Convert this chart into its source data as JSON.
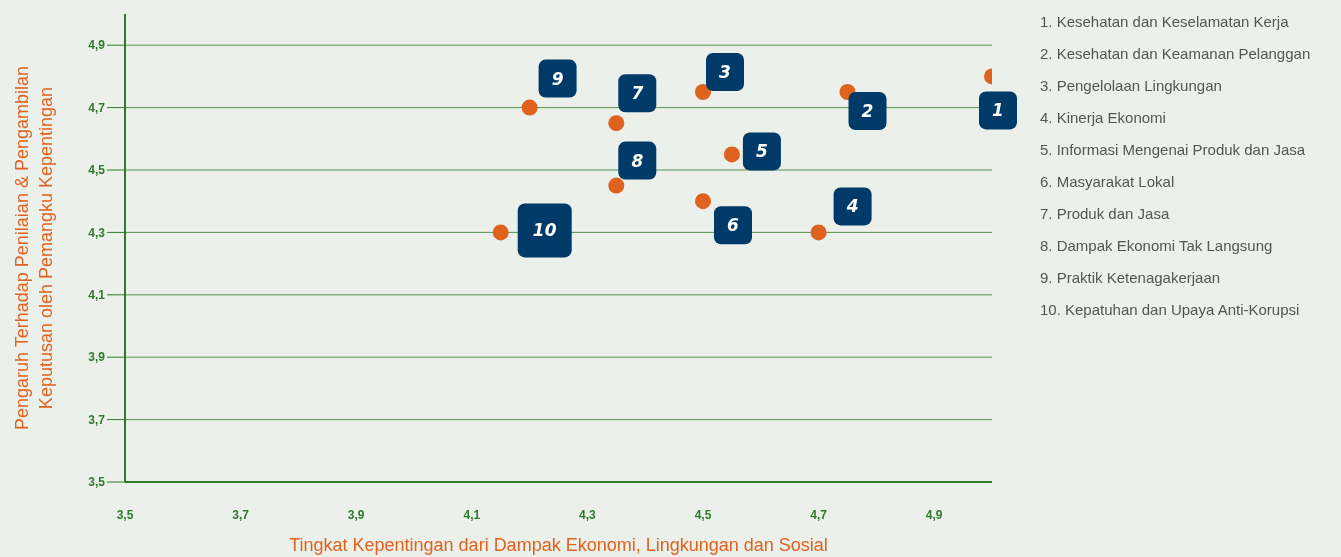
{
  "chart_data": {
    "type": "scatter",
    "xlabel": "Tingkat Kepentingan dari Dampak Ekonomi, Lingkungan dan Sosial",
    "ylabel": "Pengaruh Terhadap Penilaian & Pengambilan\nKeputusan oleh Pemangku Kepentingan",
    "x": [
      5.0,
      4.75,
      4.5,
      4.7,
      4.55,
      4.5,
      4.35,
      4.35,
      4.2,
      4.15
    ],
    "series": [
      {
        "color": "#e0621f",
        "values": [
          4.8,
          4.75,
          4.75,
          4.3,
          4.55,
          4.4,
          4.65,
          4.45,
          4.7,
          4.3
        ]
      }
    ],
    "xlim": [
      3.5,
      5.0
    ],
    "ylim": [
      3.5,
      5.0
    ],
    "xticks": [
      {
        "value": 3.5,
        "label": "3,5"
      },
      {
        "value": 3.7,
        "label": "3,7"
      },
      {
        "value": 3.9,
        "label": "3,9"
      },
      {
        "value": 4.1,
        "label": "4,1"
      },
      {
        "value": 4.3,
        "label": "4,3"
      },
      {
        "value": 4.5,
        "label": "4,5"
      },
      {
        "value": 4.7,
        "label": "4,7"
      },
      {
        "value": 4.9,
        "label": "4,9"
      }
    ],
    "yticks": [
      {
        "value": 3.5,
        "label": "3,5"
      },
      {
        "value": 3.7,
        "label": "3,7"
      },
      {
        "value": 3.9,
        "label": "3,9"
      },
      {
        "value": 4.1,
        "label": "4,1"
      },
      {
        "value": 4.3,
        "label": "4,3"
      },
      {
        "value": 4.5,
        "label": "4,5"
      },
      {
        "value": 4.7,
        "label": "4,7"
      },
      {
        "value": 4.9,
        "label": "4,9"
      }
    ],
    "grid": "y",
    "marker": "circle",
    "legend": false,
    "annotations": [
      {
        "text": "1",
        "x": 5.0,
        "y": 4.8
      },
      {
        "text": "2",
        "x": 4.75,
        "y": 4.75
      },
      {
        "text": "3",
        "x": 4.5,
        "y": 4.75
      },
      {
        "text": "4",
        "x": 4.7,
        "y": 4.3
      },
      {
        "text": "5",
        "x": 4.55,
        "y": 4.55
      },
      {
        "text": "6",
        "x": 4.5,
        "y": 4.4
      },
      {
        "text": "7",
        "x": 4.35,
        "y": 4.65
      },
      {
        "text": "8",
        "x": 4.35,
        "y": 4.45
      },
      {
        "text": "9",
        "x": 4.2,
        "y": 4.7
      },
      {
        "text": "10",
        "x": 4.15,
        "y": 4.3
      },
      "1. Kesehatan dan Keselamatan Kerja",
      "2. Kesehatan dan Keamanan Pelanggan",
      "3. Pengelolaan Lingkungan",
      "4. Kinerja Ekonomi",
      "5. Informasi Mengenai Produk dan Jasa",
      "6. Masyarakat Lokal",
      "7. Produk dan Jasa",
      "8. Dampak Ekonomi Tak Langsung",
      "9. Praktik Ketenagakerjaan",
      "10. Kepatuhan dan Upaya Anti-Korupsi"
    ]
  }
}
